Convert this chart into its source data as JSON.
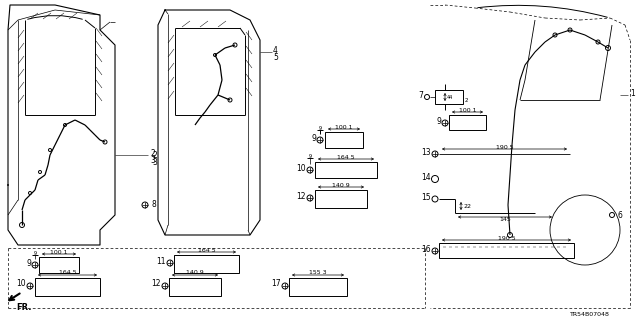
{
  "background": "#ffffff",
  "fig_width": 6.4,
  "fig_height": 3.2,
  "dpi": 100,
  "diagram_id": "TR54B07048"
}
